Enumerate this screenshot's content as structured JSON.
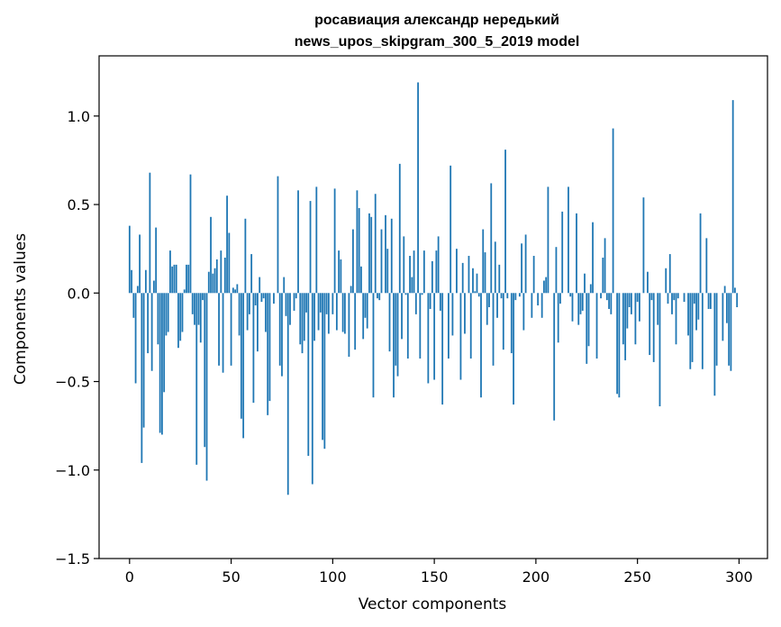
{
  "chart_data": {
    "type": "bar",
    "title_line1": "росавиация александр нередький",
    "title_line2": "news_upos_skipgram_300_5_2019 model",
    "xlabel": "Vector components",
    "ylabel": "Components values",
    "xlim": [
      -15,
      314
    ],
    "ylim": [
      -1.5,
      1.34
    ],
    "xticks": [
      0,
      50,
      100,
      150,
      200,
      250,
      300
    ],
    "yticks": [
      -1.5,
      -1.0,
      -0.5,
      0.0,
      0.5,
      1.0
    ],
    "ytick_labels": [
      "−1.5",
      "−1.0",
      "−0.5",
      "0.0",
      "0.5",
      "1.0"
    ],
    "bar_color": "#1f77b4",
    "bar_width": 0.8,
    "values": [
      0.38,
      0.13,
      -0.14,
      -0.51,
      0.04,
      0.33,
      -0.96,
      -0.76,
      0.13,
      -0.34,
      0.68,
      -0.44,
      0.07,
      0.37,
      -0.29,
      -0.79,
      -0.8,
      -0.56,
      -0.24,
      -0.22,
      0.24,
      0.15,
      0.16,
      0.16,
      -0.31,
      -0.27,
      -0.22,
      0.02,
      0.16,
      0.16,
      0.67,
      -0.12,
      -0.18,
      -0.97,
      -0.18,
      -0.28,
      -0.04,
      -0.87,
      -1.06,
      0.12,
      0.43,
      0.11,
      0.14,
      0.19,
      -0.41,
      0.24,
      -0.45,
      0.2,
      0.55,
      0.34,
      -0.41,
      0.03,
      0.02,
      0.05,
      -0.24,
      -0.71,
      -0.82,
      0.42,
      -0.21,
      -0.12,
      0.22,
      -0.62,
      -0.07,
      -0.33,
      0.09,
      -0.05,
      -0.03,
      -0.22,
      -0.69,
      -0.61,
      0.0,
      -0.06,
      0.0,
      0.66,
      -0.41,
      -0.47,
      0.09,
      -0.13,
      -1.14,
      -0.18,
      0.0,
      -0.1,
      -0.03,
      0.58,
      -0.29,
      -0.34,
      -0.27,
      -0.11,
      -0.92,
      0.52,
      -1.08,
      -0.27,
      0.6,
      -0.21,
      -0.11,
      -0.83,
      -0.88,
      -0.12,
      -0.23,
      0.0,
      -0.12,
      0.59,
      -0.21,
      0.24,
      0.19,
      -0.22,
      -0.23,
      0.0,
      -0.36,
      0.04,
      0.36,
      -0.32,
      0.58,
      0.48,
      0.15,
      -0.26,
      -0.14,
      -0.2,
      0.45,
      0.43,
      -0.59,
      0.56,
      -0.03,
      -0.04,
      0.36,
      0.0,
      0.44,
      0.25,
      -0.33,
      0.42,
      -0.59,
      -0.41,
      -0.47,
      0.73,
      -0.26,
      0.32,
      -0.01,
      -0.37,
      0.21,
      0.09,
      0.24,
      -0.12,
      1.19,
      -0.37,
      -0.01,
      0.24,
      0.0,
      -0.51,
      -0.09,
      0.18,
      -0.49,
      0.24,
      0.32,
      -0.1,
      -0.63,
      0.0,
      0.0,
      -0.37,
      0.72,
      -0.24,
      0.0,
      0.25,
      0.0,
      -0.49,
      0.17,
      -0.23,
      0.0,
      0.21,
      -0.37,
      0.14,
      0.01,
      0.11,
      -0.02,
      -0.59,
      0.36,
      0.23,
      -0.18,
      -0.08,
      0.62,
      -0.41,
      0.29,
      -0.14,
      0.16,
      -0.03,
      -0.32,
      0.81,
      -0.03,
      0.0,
      -0.34,
      -0.63,
      -0.04,
      0.0,
      -0.02,
      0.28,
      -0.21,
      0.33,
      0.0,
      0.0,
      -0.14,
      0.21,
      0.0,
      -0.07,
      0.0,
      -0.14,
      0.07,
      0.09,
      0.6,
      0.0,
      0.0,
      -0.72,
      0.26,
      -0.28,
      -0.06,
      0.46,
      0.0,
      0.0,
      0.6,
      -0.02,
      -0.16,
      0.0,
      0.45,
      -0.18,
      -0.12,
      -0.1,
      0.11,
      -0.4,
      -0.3,
      0.05,
      0.4,
      0.0,
      -0.37,
      0.0,
      -0.03,
      0.2,
      0.31,
      -0.04,
      -0.09,
      -0.12,
      0.93,
      0.0,
      -0.57,
      -0.59,
      0.0,
      -0.29,
      -0.38,
      -0.2,
      -0.08,
      -0.12,
      0.0,
      -0.29,
      -0.05,
      -0.16,
      0.0,
      0.54,
      0.0,
      0.12,
      -0.35,
      -0.04,
      -0.39,
      0.0,
      -0.18,
      -0.64,
      0.0,
      0.0,
      0.14,
      -0.06,
      0.22,
      -0.12,
      -0.04,
      -0.29,
      -0.03,
      0.0,
      0.0,
      -0.05,
      0.0,
      -0.24,
      -0.43,
      -0.39,
      -0.06,
      -0.21,
      -0.15,
      0.45,
      -0.43,
      0.0,
      0.31,
      -0.09,
      -0.09,
      0.0,
      -0.58,
      -0.41,
      0.0,
      0.0,
      -0.27,
      0.04,
      -0.17,
      -0.41,
      -0.44,
      1.09,
      0.03,
      -0.08
    ]
  }
}
